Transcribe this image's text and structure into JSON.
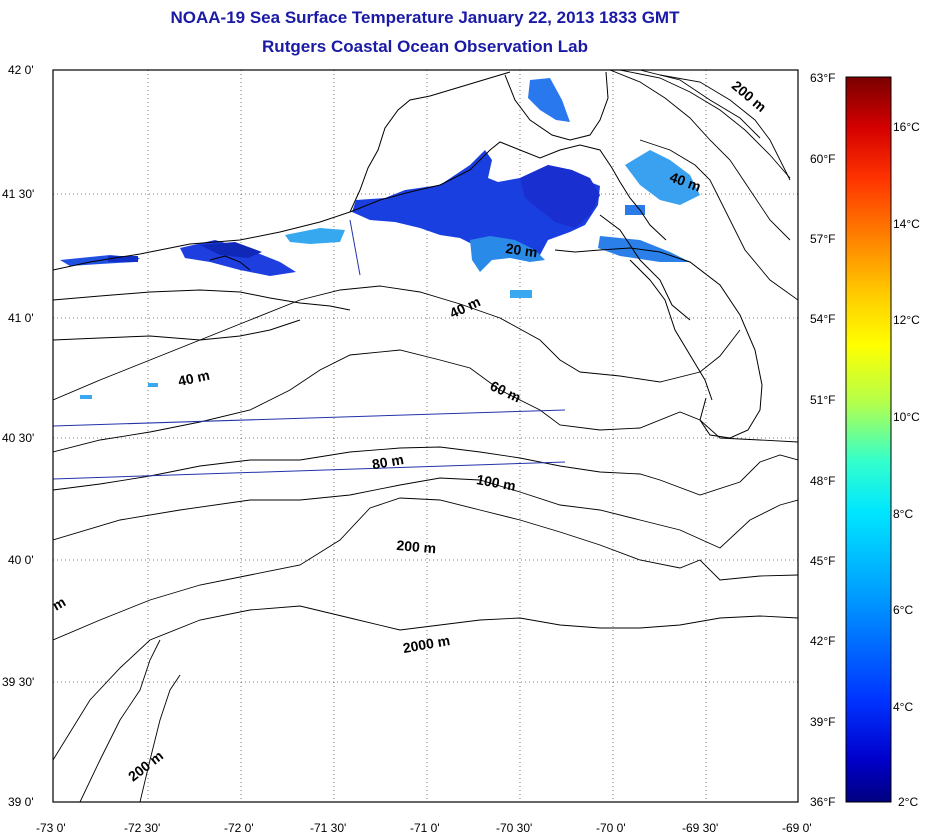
{
  "title": {
    "line1": "NOAA-19 Sea Surface Temperature January 22, 2013 1833 GMT",
    "line2": "Rutgers Coastal Ocean Observation Lab"
  },
  "map": {
    "lat_labels": [
      "42 0'",
      "41 30'",
      "41 0'",
      "40 30'",
      "40 0'",
      "39 30'",
      "39 0'"
    ],
    "lon_labels": [
      "-73 0'",
      "-72 30'",
      "-72 0'",
      "-71 30'",
      "-71 0'",
      "-70 30'",
      "-70 0'",
      "-69 30'",
      "-69 0'"
    ],
    "contour_labels": [
      "200 m",
      "40 m",
      "20 m",
      "40 m",
      "40 m",
      "60 m",
      "80 m",
      "100 m",
      "200 m",
      "2000 m",
      "200 m",
      "m"
    ]
  },
  "colorbar": {
    "fahrenheit_labels": [
      "63°F",
      "60°F",
      "57°F",
      "54°F",
      "51°F",
      "48°F",
      "45°F",
      "42°F",
      "39°F",
      "36°F"
    ],
    "celsius_labels": [
      "16°C",
      "14°C",
      "12°C",
      "10°C",
      "8°C",
      "6°C",
      "4°C",
      "2°C"
    ],
    "colors": [
      "#7a0000",
      "#d40000",
      "#ff3300",
      "#ff8000",
      "#ffcc00",
      "#ffff00",
      "#b3ff4d",
      "#33ffcc",
      "#00e6ff",
      "#0099ff",
      "#0033ff",
      "#0000cc",
      "#000080"
    ]
  }
}
